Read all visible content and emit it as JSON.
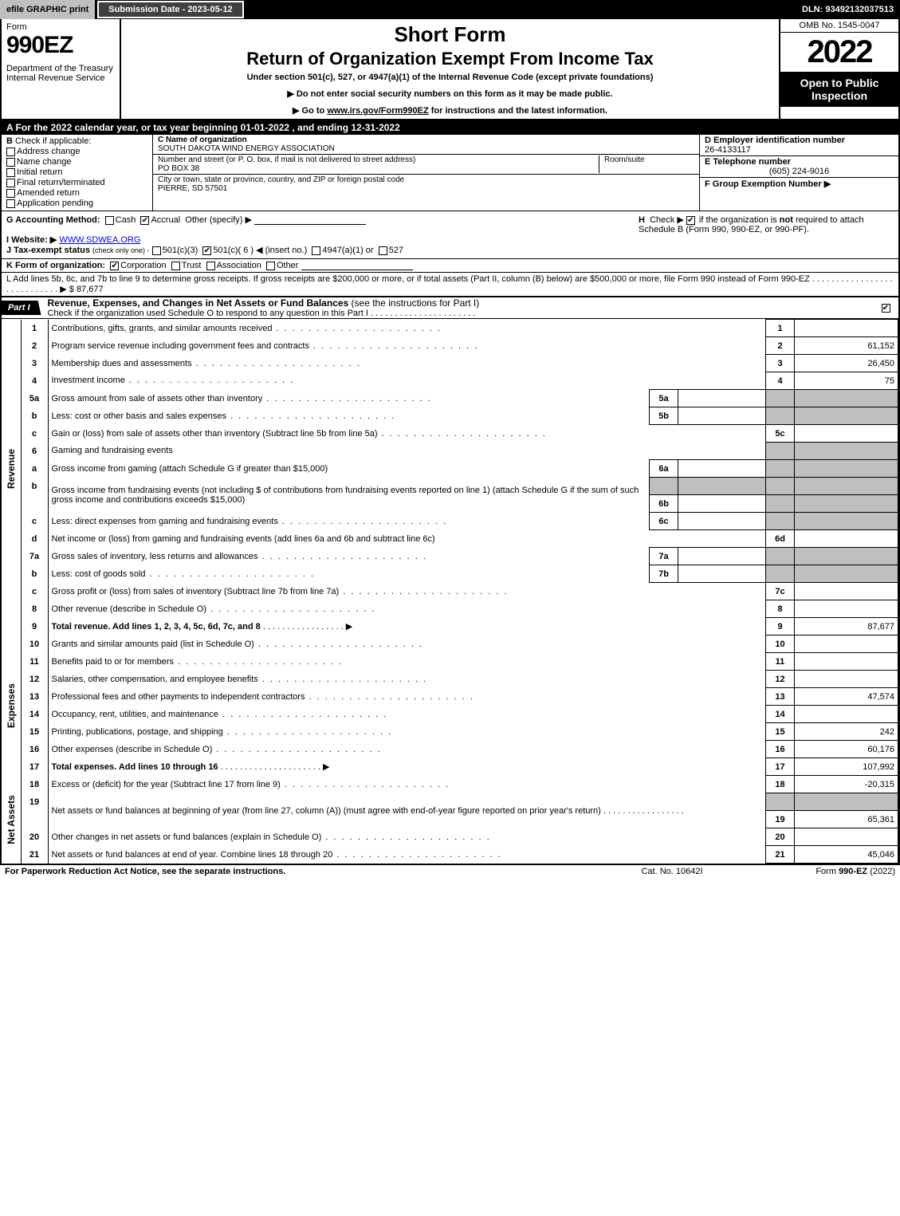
{
  "topbar": {
    "efile": "efile GRAPHIC print",
    "subdate": "Submission Date - 2023-05-12",
    "dln": "DLN: 93492132037513"
  },
  "header": {
    "form": "Form",
    "formno": "990EZ",
    "dept": "Department of the Treasury\nInternal Revenue Service",
    "short": "Short Form",
    "title": "Return of Organization Exempt From Income Tax",
    "sub": "Under section 501(c), 527, or 4947(a)(1) of the Internal Revenue Code (except private foundations)",
    "note1": "▶ Do not enter social security numbers on this form as it may be made public.",
    "note2_pre": "▶ Go to ",
    "note2_link": "www.irs.gov/Form990EZ",
    "note2_post": " for instructions and the latest information.",
    "omb": "OMB No. 1545-0047",
    "year": "2022",
    "open": "Open to Public Inspection"
  },
  "A": "A  For the 2022 calendar year, or tax year beginning 01-01-2022 , and ending 12-31-2022",
  "B": {
    "label": "B",
    "check": "Check if applicable:",
    "opts": [
      "Address change",
      "Name change",
      "Initial return",
      "Final return/terminated",
      "Amended return",
      "Application pending"
    ]
  },
  "C": {
    "name_lab": "C Name of organization",
    "name": "SOUTH DAKOTA WIND ENERGY ASSOCIATION",
    "addr_lab": "Number and street (or P. O. box, if mail is not delivered to street address)",
    "room_lab": "Room/suite",
    "addr": "PO BOX 38",
    "city_lab": "City or town, state or province, country, and ZIP or foreign postal code",
    "city": "PIERRE, SD  57501"
  },
  "D": {
    "lab": "D Employer identification number",
    "val": "26-4133117"
  },
  "E": {
    "lab": "E Telephone number",
    "val": "(605) 224-9016"
  },
  "F": {
    "lab": "F Group Exemption Number  ▶",
    "val": ""
  },
  "G": {
    "lab": "G Accounting Method:",
    "cash": "Cash",
    "accrual": "Accrual",
    "other": "Other (specify) ▶"
  },
  "H": {
    "lab": "H",
    "txt1": "Check ▶",
    "txt2": "if the organization is ",
    "not": "not",
    "txt3": " required to attach Schedule B (Form 990, 990-EZ, or 990-PF)."
  },
  "I": {
    "lab": "I Website: ▶",
    "val": "WWW.SDWEA.ORG"
  },
  "J": {
    "lab": "J Tax-exempt status",
    "sub": "(check only one) -",
    "o1": "501(c)(3)",
    "o2": "501(c)( 6 ) ◀ (insert no.)",
    "o3": "4947(a)(1) or",
    "o4": "527"
  },
  "K": {
    "lab": "K Form of organization:",
    "o1": "Corporation",
    "o2": "Trust",
    "o3": "Association",
    "o4": "Other"
  },
  "L": {
    "txt": "L Add lines 5b, 6c, and 7b to line 9 to determine gross receipts. If gross receipts are $200,000 or more, or if total assets (Part II, column (B) below) are $500,000 or more, file Form 990 instead of Form 990-EZ",
    "amt": "▶ $ 87,677"
  },
  "part1": {
    "tag": "Part I",
    "title": "Revenue, Expenses, and Changes in Net Assets or Fund Balances",
    "paren": "(see the instructions for Part I)",
    "sub": "Check if the organization used Schedule O to respond to any question in this Part I"
  },
  "sideLabels": {
    "rev": "Revenue",
    "exp": "Expenses",
    "net": "Net Assets"
  },
  "lines": {
    "l1": "Contributions, gifts, grants, and similar amounts received",
    "l2": "Program service revenue including government fees and contracts",
    "l3": "Membership dues and assessments",
    "l4": "Investment income",
    "l5a": "Gross amount from sale of assets other than inventory",
    "l5b": "Less: cost or other basis and sales expenses",
    "l5c": "Gain or (loss) from sale of assets other than inventory (Subtract line 5b from line 5a)",
    "l6": "Gaming and fundraising events",
    "l6a": "Gross income from gaming (attach Schedule G if greater than $15,000)",
    "l6b": "Gross income from fundraising events (not including $                    of contributions from fundraising events reported on line 1) (attach Schedule G if the sum of such gross income and contributions exceeds $15,000)",
    "l6c": "Less: direct expenses from gaming and fundraising events",
    "l6d": "Net income or (loss) from gaming and fundraising events (add lines 6a and 6b and subtract line 6c)",
    "l7a": "Gross sales of inventory, less returns and allowances",
    "l7b": "Less: cost of goods sold",
    "l7c": "Gross profit or (loss) from sales of inventory (Subtract line 7b from line 7a)",
    "l8": "Other revenue (describe in Schedule O)",
    "l9": "Total revenue. Add lines 1, 2, 3, 4, 5c, 6d, 7c, and 8",
    "l10": "Grants and similar amounts paid (list in Schedule O)",
    "l11": "Benefits paid to or for members",
    "l12": "Salaries, other compensation, and employee benefits",
    "l13": "Professional fees and other payments to independent contractors",
    "l14": "Occupancy, rent, utilities, and maintenance",
    "l15": "Printing, publications, postage, and shipping",
    "l16": "Other expenses (describe in Schedule O)",
    "l17": "Total expenses. Add lines 10 through 16",
    "l18": "Excess or (deficit) for the year (Subtract line 17 from line 9)",
    "l19": "Net assets or fund balances at beginning of year (from line 27, column (A)) (must agree with end-of-year figure reported on prior year's return)",
    "l20": "Other changes in net assets or fund balances (explain in Schedule O)",
    "l21": "Net assets or fund balances at end of year. Combine lines 18 through 20"
  },
  "amts": {
    "l1": "",
    "l2": "61,152",
    "l3": "26,450",
    "l4": "75",
    "l5c": "",
    "l6d": "",
    "l7c": "",
    "l8": "",
    "l9": "87,677",
    "l10": "",
    "l11": "",
    "l12": "",
    "l13": "47,574",
    "l14": "",
    "l15": "242",
    "l16": "60,176",
    "l17": "107,992",
    "l18": "-20,315",
    "l19": "65,361",
    "l20": "",
    "l21": "45,046"
  },
  "footer": {
    "left": "For Paperwork Reduction Act Notice, see the separate instructions.",
    "mid": "Cat. No. 10642I",
    "right_pre": "Form ",
    "right_b": "990-EZ",
    "right_post": " (2022)"
  }
}
